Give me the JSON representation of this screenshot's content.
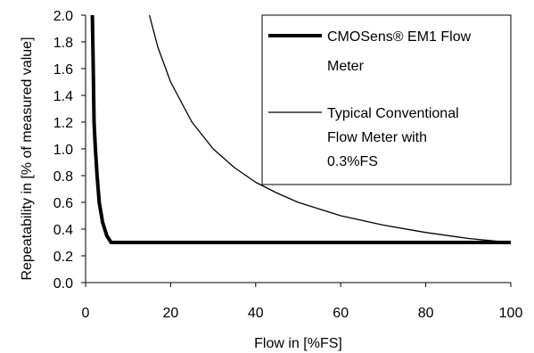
{
  "chart_data": {
    "type": "line",
    "xlabel": "Flow in [%FS]",
    "ylabel": "Repeatability in [% of measured value]",
    "xlim": [
      0,
      100
    ],
    "ylim": [
      0,
      2.0
    ],
    "x_ticks": [
      "0",
      "20",
      "40",
      "60",
      "80",
      "100"
    ],
    "y_ticks": [
      "0.0",
      "0.2",
      "0.4",
      "0.6",
      "0.8",
      "1.0",
      "1.2",
      "1.4",
      "1.6",
      "1.8",
      "2.0"
    ],
    "grid": false,
    "legend_position": "top-right",
    "series": [
      {
        "name": "CMOSens® EM1 Flow Meter",
        "line_weight": "thick",
        "color": "#000000",
        "points": [
          [
            1.6,
            2.0
          ],
          [
            1.8,
            1.6
          ],
          [
            2.0,
            1.2
          ],
          [
            2.3,
            1.0
          ],
          [
            2.7,
            0.8
          ],
          [
            3.2,
            0.6
          ],
          [
            4.0,
            0.45
          ],
          [
            5.0,
            0.35
          ],
          [
            6.0,
            0.3
          ],
          [
            100,
            0.3
          ]
        ]
      },
      {
        "name": "Typical Conventional Flow Meter with 0.3%FS",
        "line_weight": "thin",
        "color": "#000000",
        "points": [
          [
            15,
            2.0
          ],
          [
            17,
            1.76
          ],
          [
            20,
            1.5
          ],
          [
            25,
            1.2
          ],
          [
            30,
            1.0
          ],
          [
            35,
            0.86
          ],
          [
            40,
            0.75
          ],
          [
            45,
            0.67
          ],
          [
            50,
            0.6
          ],
          [
            60,
            0.5
          ],
          [
            70,
            0.43
          ],
          [
            80,
            0.375
          ],
          [
            90,
            0.33
          ],
          [
            95,
            0.315
          ],
          [
            100,
            0.3
          ]
        ]
      }
    ]
  }
}
